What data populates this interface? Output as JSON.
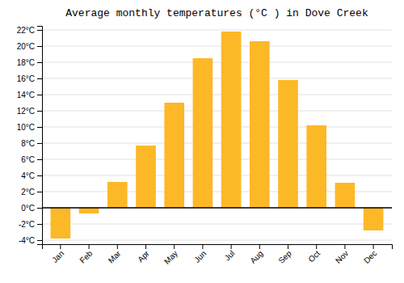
{
  "chart_data": {
    "type": "bar",
    "title": "Average monthly temperatures (°C ) in Dove Creek",
    "categories": [
      "Jan",
      "Feb",
      "Mar",
      "Apr",
      "May",
      "Jun",
      "Jul",
      "Aug",
      "Sep",
      "Oct",
      "Nov",
      "Dec"
    ],
    "values": [
      -3.8,
      -0.7,
      3.2,
      7.7,
      13.0,
      18.5,
      21.8,
      20.6,
      15.8,
      10.2,
      3.1,
      -2.8
    ],
    "color": "#FDB827",
    "ylim": [
      -4.5,
      22.5
    ],
    "yticks": [
      {
        "value": -4,
        "label": "-4°C"
      },
      {
        "value": -2,
        "label": "-2°C"
      },
      {
        "value": 0,
        "label": "0°C"
      },
      {
        "value": 2,
        "label": "2°C"
      },
      {
        "value": 4,
        "label": "4°C"
      },
      {
        "value": 6,
        "label": "6°C"
      },
      {
        "value": 8,
        "label": "8°C"
      },
      {
        "value": 10,
        "label": "10°C"
      },
      {
        "value": 12,
        "label": "12°C"
      },
      {
        "value": 14,
        "label": "14°C"
      },
      {
        "value": 16,
        "label": "16°C"
      },
      {
        "value": 18,
        "label": "18°C"
      },
      {
        "value": 20,
        "label": "20°C"
      },
      {
        "value": 22,
        "label": "22°C"
      }
    ],
    "grid": true
  }
}
